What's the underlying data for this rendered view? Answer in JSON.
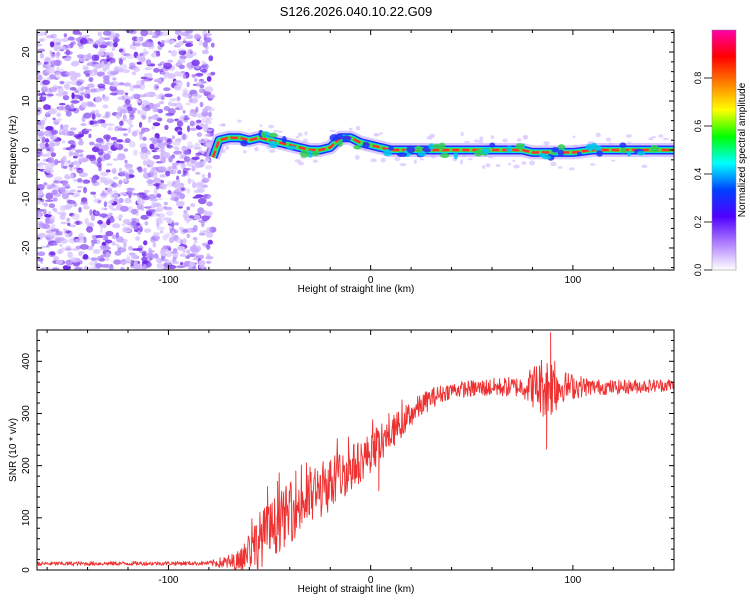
{
  "title": "S126.2026.040.10.22.G09",
  "chart_data": [
    {
      "type": "heatmap",
      "xlabel": "Height of straight line (km)",
      "ylabel": "Frequency (Hz)",
      "xlim": [
        -165,
        150
      ],
      "ylim": [
        -24.5,
        24.5
      ],
      "x_ticks": [
        -100,
        0,
        100
      ],
      "y_ticks": [
        20,
        10,
        0,
        -10,
        -20
      ],
      "noise_region": {
        "x_range": [
          -165,
          -78
        ],
        "y_range": [
          -24.5,
          24.5
        ]
      },
      "ridge": {
        "x": [
          -78,
          -75,
          -70,
          -65,
          -60,
          -55,
          -50,
          -45,
          -40,
          -35,
          -30,
          -25,
          -20,
          -15,
          -10,
          -5,
          0,
          5,
          10,
          20,
          40,
          60,
          75,
          80,
          85,
          90,
          95,
          100,
          110,
          130,
          150
        ],
        "y": [
          -1.5,
          2.0,
          2.5,
          2.5,
          2.0,
          2.5,
          2.0,
          1.5,
          1.0,
          0.5,
          0.0,
          0.0,
          0.5,
          2.5,
          2.5,
          1.5,
          1.0,
          0.5,
          0.0,
          0.0,
          0.0,
          0.0,
          0.0,
          -0.5,
          -0.5,
          -0.5,
          -0.5,
          -0.5,
          0.0,
          0.0,
          0.0
        ]
      },
      "colorbar": {
        "label": "Normalized spectral amplitude",
        "range": [
          0,
          1
        ],
        "ticks": [
          "0.0",
          "0.2",
          "0.4",
          "0.6",
          "0.8"
        ],
        "tick_values": [
          0.0,
          0.2,
          0.4,
          0.6,
          0.8
        ],
        "colors": [
          "#ffffff",
          "#b080ff",
          "#5000ff",
          "#0040ff",
          "#00ffff",
          "#00ff00",
          "#ffff00",
          "#ff8000",
          "#ff0000",
          "#ff00aa"
        ]
      }
    },
    {
      "type": "line",
      "xlabel": "Height of straight line (km)",
      "ylabel": "SNR (10 * v/v)",
      "xlim": [
        -165,
        150
      ],
      "ylim": [
        0,
        460
      ],
      "x_ticks": [
        -100,
        0,
        100
      ],
      "y_ticks": [
        0,
        100,
        200,
        300,
        400
      ],
      "color": "#ee3030",
      "trend": {
        "x": [
          -165,
          -80,
          -66,
          -60,
          -50,
          -40,
          -30,
          -20,
          -10,
          0,
          10,
          20,
          30,
          40,
          60,
          80,
          100,
          120,
          150
        ],
        "y": [
          12,
          13,
          15,
          40,
          75,
          110,
          140,
          165,
          195,
          225,
          262,
          300,
          330,
          345,
          350,
          352,
          352,
          350,
          355
        ]
      },
      "noise_amplitude": {
        "x": [
          -165,
          -80,
          -66,
          -55,
          -30,
          -10,
          20,
          40,
          75,
          85,
          90,
          95,
          110,
          150
        ],
        "y": [
          4,
          4,
          20,
          55,
          60,
          45,
          25,
          15,
          20,
          60,
          60,
          30,
          15,
          12
        ]
      },
      "spikes": [
        {
          "x": 87,
          "y": 232
        },
        {
          "x": 89,
          "y": 455
        },
        {
          "x": 91,
          "y": 400
        },
        {
          "x": -51,
          "y": 160
        },
        {
          "x": -46,
          "y": 170
        },
        {
          "x": -37,
          "y": 190
        },
        {
          "x": -35,
          "y": 90
        },
        {
          "x": -11,
          "y": 255
        },
        {
          "x": 4,
          "y": 152
        },
        {
          "x": 9,
          "y": 300
        }
      ]
    }
  ]
}
